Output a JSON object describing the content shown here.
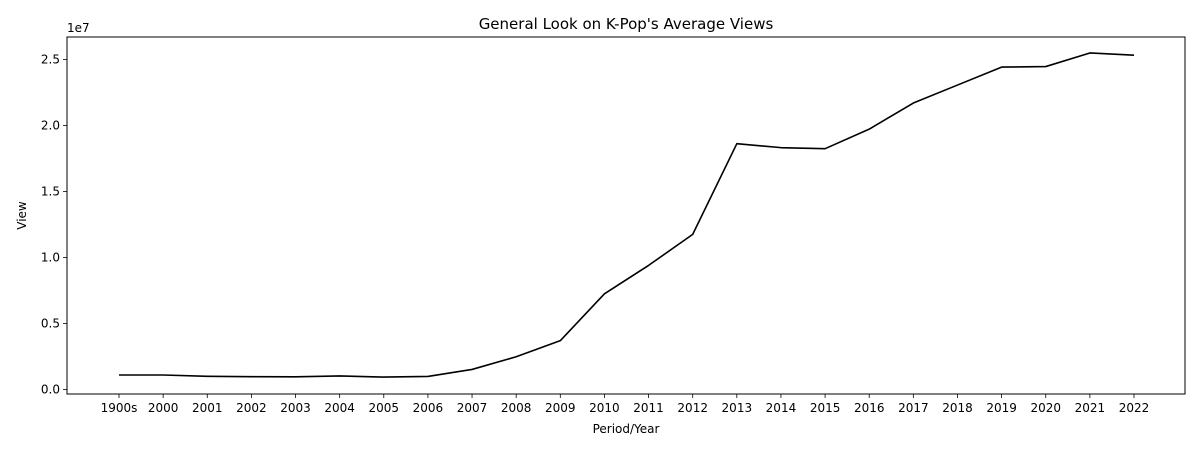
{
  "chart_data": {
    "type": "line",
    "title": "General Look on K-Pop's Average Views",
    "xlabel": "Period/Year",
    "ylabel": "View",
    "y_offset_label": "1e7",
    "y_scale_factor": 10000000,
    "categories": [
      "1900s",
      "2000",
      "2001",
      "2002",
      "2003",
      "2004",
      "2005",
      "2006",
      "2007",
      "2008",
      "2009",
      "2010",
      "2011",
      "2012",
      "2013",
      "2014",
      "2015",
      "2016",
      "2017",
      "2018",
      "2019",
      "2020",
      "2021",
      "2022"
    ],
    "series": [
      {
        "color": "#000000",
        "values": [
          1100000,
          1100000,
          1000000,
          970000,
          960000,
          1030000,
          940000,
          990000,
          1520000,
          2480000,
          3700000,
          7250000,
          9400000,
          11750000,
          18620000,
          18320000,
          18240000,
          19720000,
          21700000,
          23060000,
          24420000,
          24460000,
          25490000,
          25320000
        ]
      }
    ],
    "yticks": [
      0,
      5000000,
      10000000,
      15000000,
      20000000,
      25000000
    ],
    "ytick_labels": [
      "0.0",
      "0.5",
      "1.0",
      "1.5",
      "2.0",
      "2.5"
    ],
    "ylim": [
      -340000,
      26700000
    ],
    "grid": false
  }
}
